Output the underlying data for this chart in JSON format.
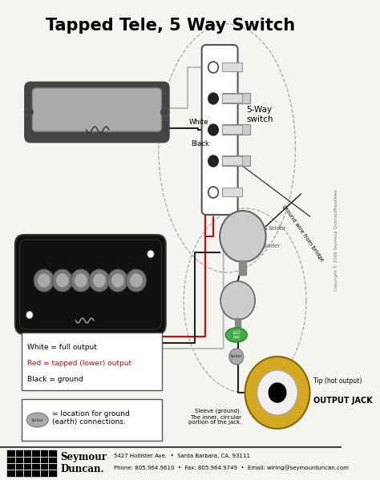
{
  "title": "Tapped Tele, 5 Way Switch",
  "title_fontsize": 15,
  "title_fontweight": "bold",
  "bg_color": "#f5f5f0",
  "footer_text1": "5427 Hollister Ave.  •  Santa Barbara, CA. 93111",
  "footer_text2": "Phone: 805.964.9610  •  Fax: 805.964.9749  •  Email: wiring@seymourduncan.com",
  "copyright_text": "Copyright © 2006 Seymour Duncan/Basslines",
  "switch_label": "5-Way\nswitch",
  "output_jack_label": "OUTPUT JACK",
  "tip_label": "Tip (hot output)",
  "sleeve_label": "Sleeve (ground).\nThe inner, circular\nportion of the jack.",
  "legend_lines": [
    "White = full output",
    "Red = tapped (lower) output",
    "Black = ground"
  ],
  "solder_legend": "= location for ground\n(earth) connections.",
  "ground_from_bridge": "ground wire from bridge",
  "colors": {
    "white_wire": "#bbbbbb",
    "black_wire": "#222222",
    "red_wire": "#dd0000",
    "pot_fill": "#cccccc",
    "jack_gold": "#d4a820",
    "jack_white": "#f0f0f0",
    "solder_dot": "#aaaaaa",
    "green_cap": "#44aa44",
    "switch_fill": "#ffffff",
    "switch_border": "#888888",
    "neck_cover": "#aaaaaa",
    "neck_body": "#444444",
    "bridge_body": "#111111",
    "bridge_pole": "#777777",
    "bridge_pole_light": "#aaaaaa"
  }
}
